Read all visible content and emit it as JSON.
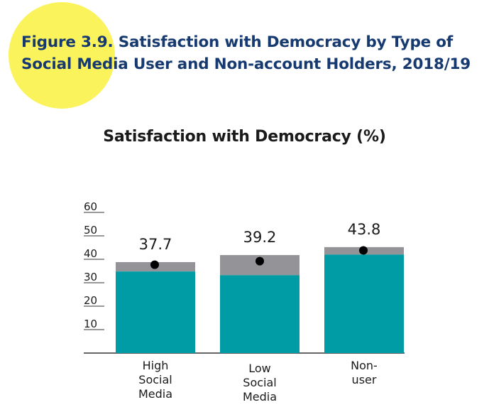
{
  "figure_title_line1": "Figure 3.9. Satisfaction with Democracy by Type of",
  "figure_title_line2": "Social Media User and Non-account Holders, 2018/19",
  "colors": {
    "highlight": "#fbf35c",
    "title": "#163a70",
    "bar": "#009ca6",
    "interval": "#949498",
    "point": "#000000"
  },
  "chart_data": {
    "type": "bar",
    "title": "Satisfaction with Democracy (%)",
    "categories": [
      [
        "High",
        "Social",
        "Media"
      ],
      [
        "Low",
        "Social",
        "Media"
      ],
      [
        "Non-",
        "user"
      ]
    ],
    "values": [
      37.7,
      39.2,
      43.8
    ],
    "value_labels": [
      "37.7",
      "39.2",
      "43.8"
    ],
    "interval_low": [
      34.8,
      33.2,
      42.0
    ],
    "interval_high": [
      38.8,
      41.8,
      45.2
    ],
    "yticks": [
      "10",
      "20",
      "30",
      "40",
      "50",
      "60"
    ],
    "ylim": [
      0,
      60
    ],
    "grid": false
  }
}
